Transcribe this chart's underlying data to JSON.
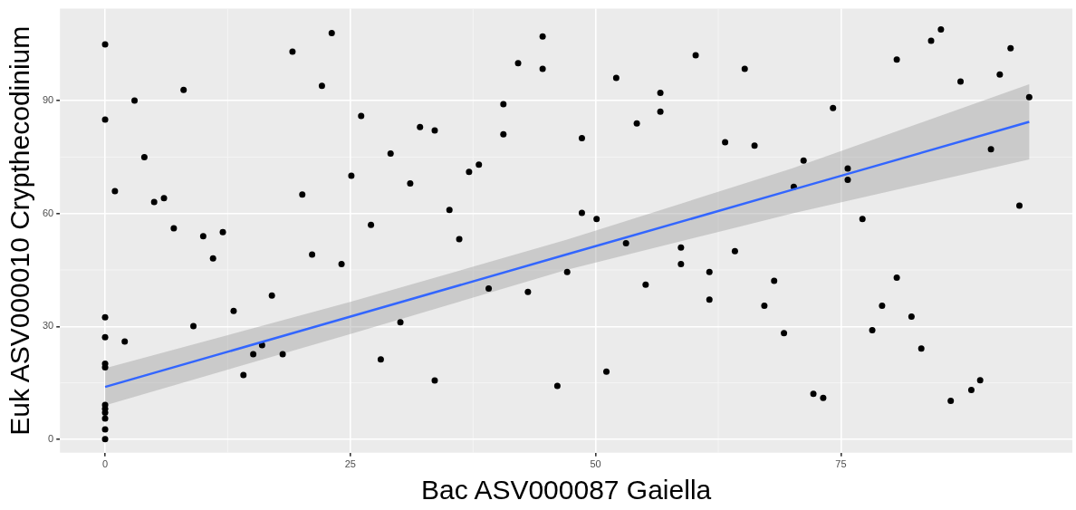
{
  "chart_data": {
    "type": "scatter",
    "xlabel": "Bac ASV000087 Gaiella",
    "ylabel": "Euk ASV000010 Crypthecodinium",
    "xlim": [
      -4.6,
      98.6
    ],
    "ylim": [
      -3.6,
      114.5
    ],
    "xticks": [
      0,
      25,
      50,
      75
    ],
    "yticks": [
      0,
      30,
      60,
      90
    ],
    "grid": true,
    "legend": false,
    "series": [
      {
        "marker": "circle",
        "color": "#000000",
        "x": [
          0,
          0,
          0,
          0,
          0,
          0,
          0,
          0,
          0,
          0,
          0,
          0,
          1.0,
          3.0,
          2.0,
          4.0,
          5.0,
          6.0,
          7.0,
          8.0,
          9.0,
          10.0,
          11.0,
          12.0,
          13.1,
          14.1,
          15.1,
          16.0,
          17.0,
          18.1,
          19.1,
          20.1,
          21.1,
          22.1,
          23.1,
          24.1,
          25.1,
          26.1,
          27.1,
          28.1,
          29.1,
          30.1,
          31.1,
          32.1,
          33.6,
          33.6,
          35.1,
          36.1,
          37.1,
          38.1,
          39.1,
          40.6,
          40.6,
          42.1,
          43.1,
          44.6,
          44.6,
          46.1,
          47.1,
          48.6,
          48.6,
          50.1,
          51.1,
          52.1,
          53.1,
          54.2,
          55.1,
          56.6,
          56.6,
          58.7,
          58.7,
          60.2,
          61.6,
          61.6,
          63.2,
          64.2,
          65.2,
          66.2,
          67.2,
          68.2,
          69.2,
          70.2,
          71.2,
          72.2,
          73.2,
          74.2,
          75.7,
          75.7,
          77.2,
          78.2,
          79.2,
          80.7,
          80.7,
          82.2,
          83.2,
          84.2,
          85.2,
          86.2,
          87.2,
          88.3,
          89.2,
          90.3,
          91.2,
          92.3,
          93.2,
          94.2
        ],
        "values": [
          105,
          85,
          32.4,
          27.1,
          20.1,
          19.1,
          9.1,
          8.1,
          7.1,
          5.5,
          2.6,
          0,
          66.0,
          90.1,
          26.0,
          75.0,
          63.1,
          64.1,
          56.1,
          92.9,
          30.1,
          54.0,
          48.1,
          55.1,
          34.1,
          17.1,
          22.6,
          25.0,
          38.2,
          22.6,
          103.1,
          65.1,
          49.1,
          94.0,
          108.0,
          46.6,
          70.1,
          86.0,
          57.0,
          21.2,
          76.0,
          31.1,
          68.0,
          83.0,
          82.1,
          15.6,
          61.0,
          53.2,
          71.1,
          73.0,
          40.1,
          89.1,
          81.1,
          100.0,
          39.2,
          107.1,
          98.5,
          14.2,
          44.5,
          80.1,
          60.2,
          58.6,
          18.0,
          96.1,
          52.1,
          84.0,
          41.1,
          92.1,
          87.1,
          51.0,
          46.6,
          102.1,
          44.5,
          37.1,
          79.0,
          50.0,
          98.5,
          78.1,
          35.5,
          42.1,
          28.2,
          67.1,
          74.1,
          12.1,
          11.0,
          88.1,
          72.0,
          69.0,
          58.6,
          29.0,
          35.5,
          101.0,
          43.0,
          32.6,
          24.1,
          106.0,
          109.0,
          10.2,
          95.1,
          13.1,
          15.7,
          77.1,
          97.0,
          104.0,
          62.1,
          91.0
        ]
      },
      {
        "type": "line",
        "marker": "none",
        "color": "#3366ff",
        "x": [
          0,
          25,
          47,
          70,
          94.2
        ],
        "values": [
          13.9,
          32.6,
          49.1,
          66.3,
          84.4
        ],
        "lower": [
          9.0,
          28.0,
          45.0,
          60.0,
          74.4
        ],
        "upper": [
          18.9,
          36.5,
          53.0,
          72.0,
          94.4
        ]
      }
    ]
  }
}
